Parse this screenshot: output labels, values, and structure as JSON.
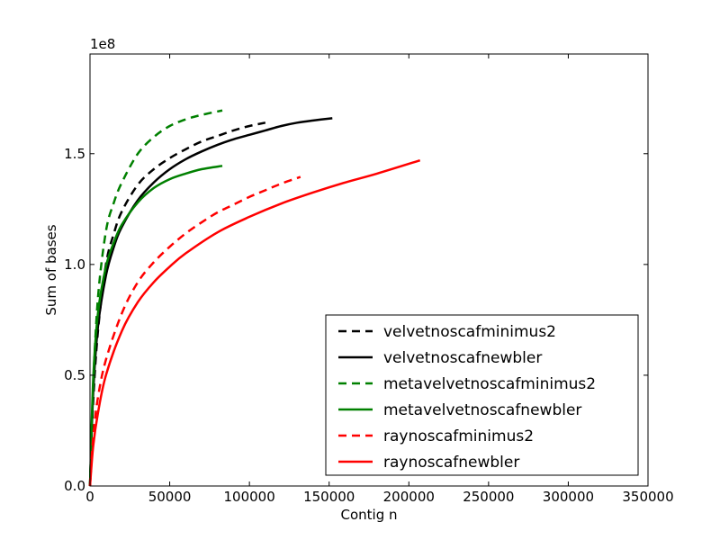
{
  "chart_data": {
    "type": "line",
    "title": "",
    "xlabel": "Contig n",
    "ylabel": "Sum of bases",
    "y_offset_label": "1e8",
    "xlim": [
      0,
      350000
    ],
    "ylim": [
      0,
      195000000
    ],
    "x_ticks": [
      0,
      50000,
      100000,
      150000,
      200000,
      250000,
      300000,
      350000
    ],
    "x_tick_labels": [
      "0",
      "50000",
      "100000",
      "150000",
      "200000",
      "250000",
      "300000",
      "350000"
    ],
    "y_ticks": [
      0,
      50000000,
      100000000,
      150000000
    ],
    "y_tick_labels": [
      "0.0",
      "0.5",
      "1.0",
      "1.5"
    ],
    "grid": false,
    "legend_position": "lower-right",
    "series": [
      {
        "name": "velvetnoscafminimus2",
        "color": "#000000",
        "dash": "dashed",
        "x": [
          0,
          2000,
          5000,
          10000,
          15000,
          20000,
          30000,
          40000,
          50000,
          60000,
          70000,
          80000,
          90000,
          100000,
          110000
        ],
        "y": [
          0,
          38000000,
          70000000,
          100000000,
          114000000,
          124000000,
          136000000,
          143000000,
          148000000,
          152000000,
          155500000,
          158000000,
          160500000,
          162500000,
          164000000
        ]
      },
      {
        "name": "velvetnoscafnewbler",
        "color": "#000000",
        "dash": "solid",
        "x": [
          0,
          2000,
          5000,
          10000,
          15000,
          20000,
          30000,
          40000,
          50000,
          60000,
          70000,
          80000,
          90000,
          100000,
          110000,
          120000,
          130000,
          140000,
          152000
        ],
        "y": [
          0,
          42000000,
          72000000,
          95000000,
          108000000,
          117000000,
          129000000,
          137000000,
          143000000,
          147500000,
          151000000,
          154000000,
          156500000,
          158500000,
          160500000,
          162500000,
          164000000,
          165000000,
          166000000
        ]
      },
      {
        "name": "metavelvetnoscafminimus2",
        "color": "#008000",
        "dash": "dashed",
        "x": [
          0,
          2000,
          5000,
          10000,
          15000,
          20000,
          30000,
          40000,
          50000,
          60000,
          70000,
          83000
        ],
        "y": [
          0,
          45000000,
          85000000,
          115000000,
          128000000,
          137000000,
          150000000,
          157500000,
          162500000,
          165500000,
          167500000,
          169500000
        ]
      },
      {
        "name": "metavelvetnoscafnewbler",
        "color": "#008000",
        "dash": "solid",
        "x": [
          0,
          2000,
          5000,
          10000,
          15000,
          20000,
          30000,
          40000,
          50000,
          60000,
          70000,
          83000
        ],
        "y": [
          0,
          48000000,
          78000000,
          99000000,
          110000000,
          118000000,
          128000000,
          134500000,
          138500000,
          141000000,
          143000000,
          144500000
        ]
      },
      {
        "name": "raynoscafminimus2",
        "color": "#ff0000",
        "dash": "dashed",
        "x": [
          0,
          2000,
          5000,
          10000,
          20000,
          30000,
          40000,
          50000,
          60000,
          70000,
          80000,
          90000,
          100000,
          110000,
          120000,
          132000
        ],
        "y": [
          0,
          22000000,
          40000000,
          57000000,
          78000000,
          92000000,
          101000000,
          108000000,
          114000000,
          119000000,
          123500000,
          127000000,
          130500000,
          133500000,
          136500000,
          139500000
        ]
      },
      {
        "name": "raynoscafnewbler",
        "color": "#ff0000",
        "dash": "solid",
        "x": [
          0,
          2000,
          5000,
          10000,
          20000,
          30000,
          40000,
          50000,
          60000,
          80000,
          100000,
          120000,
          140000,
          160000,
          180000,
          207000
        ],
        "y": [
          0,
          18000000,
          33000000,
          50000000,
          70000000,
          83000000,
          92000000,
          99000000,
          105000000,
          114500000,
          121500000,
          127500000,
          132500000,
          137000000,
          141000000,
          147000000
        ]
      }
    ]
  }
}
